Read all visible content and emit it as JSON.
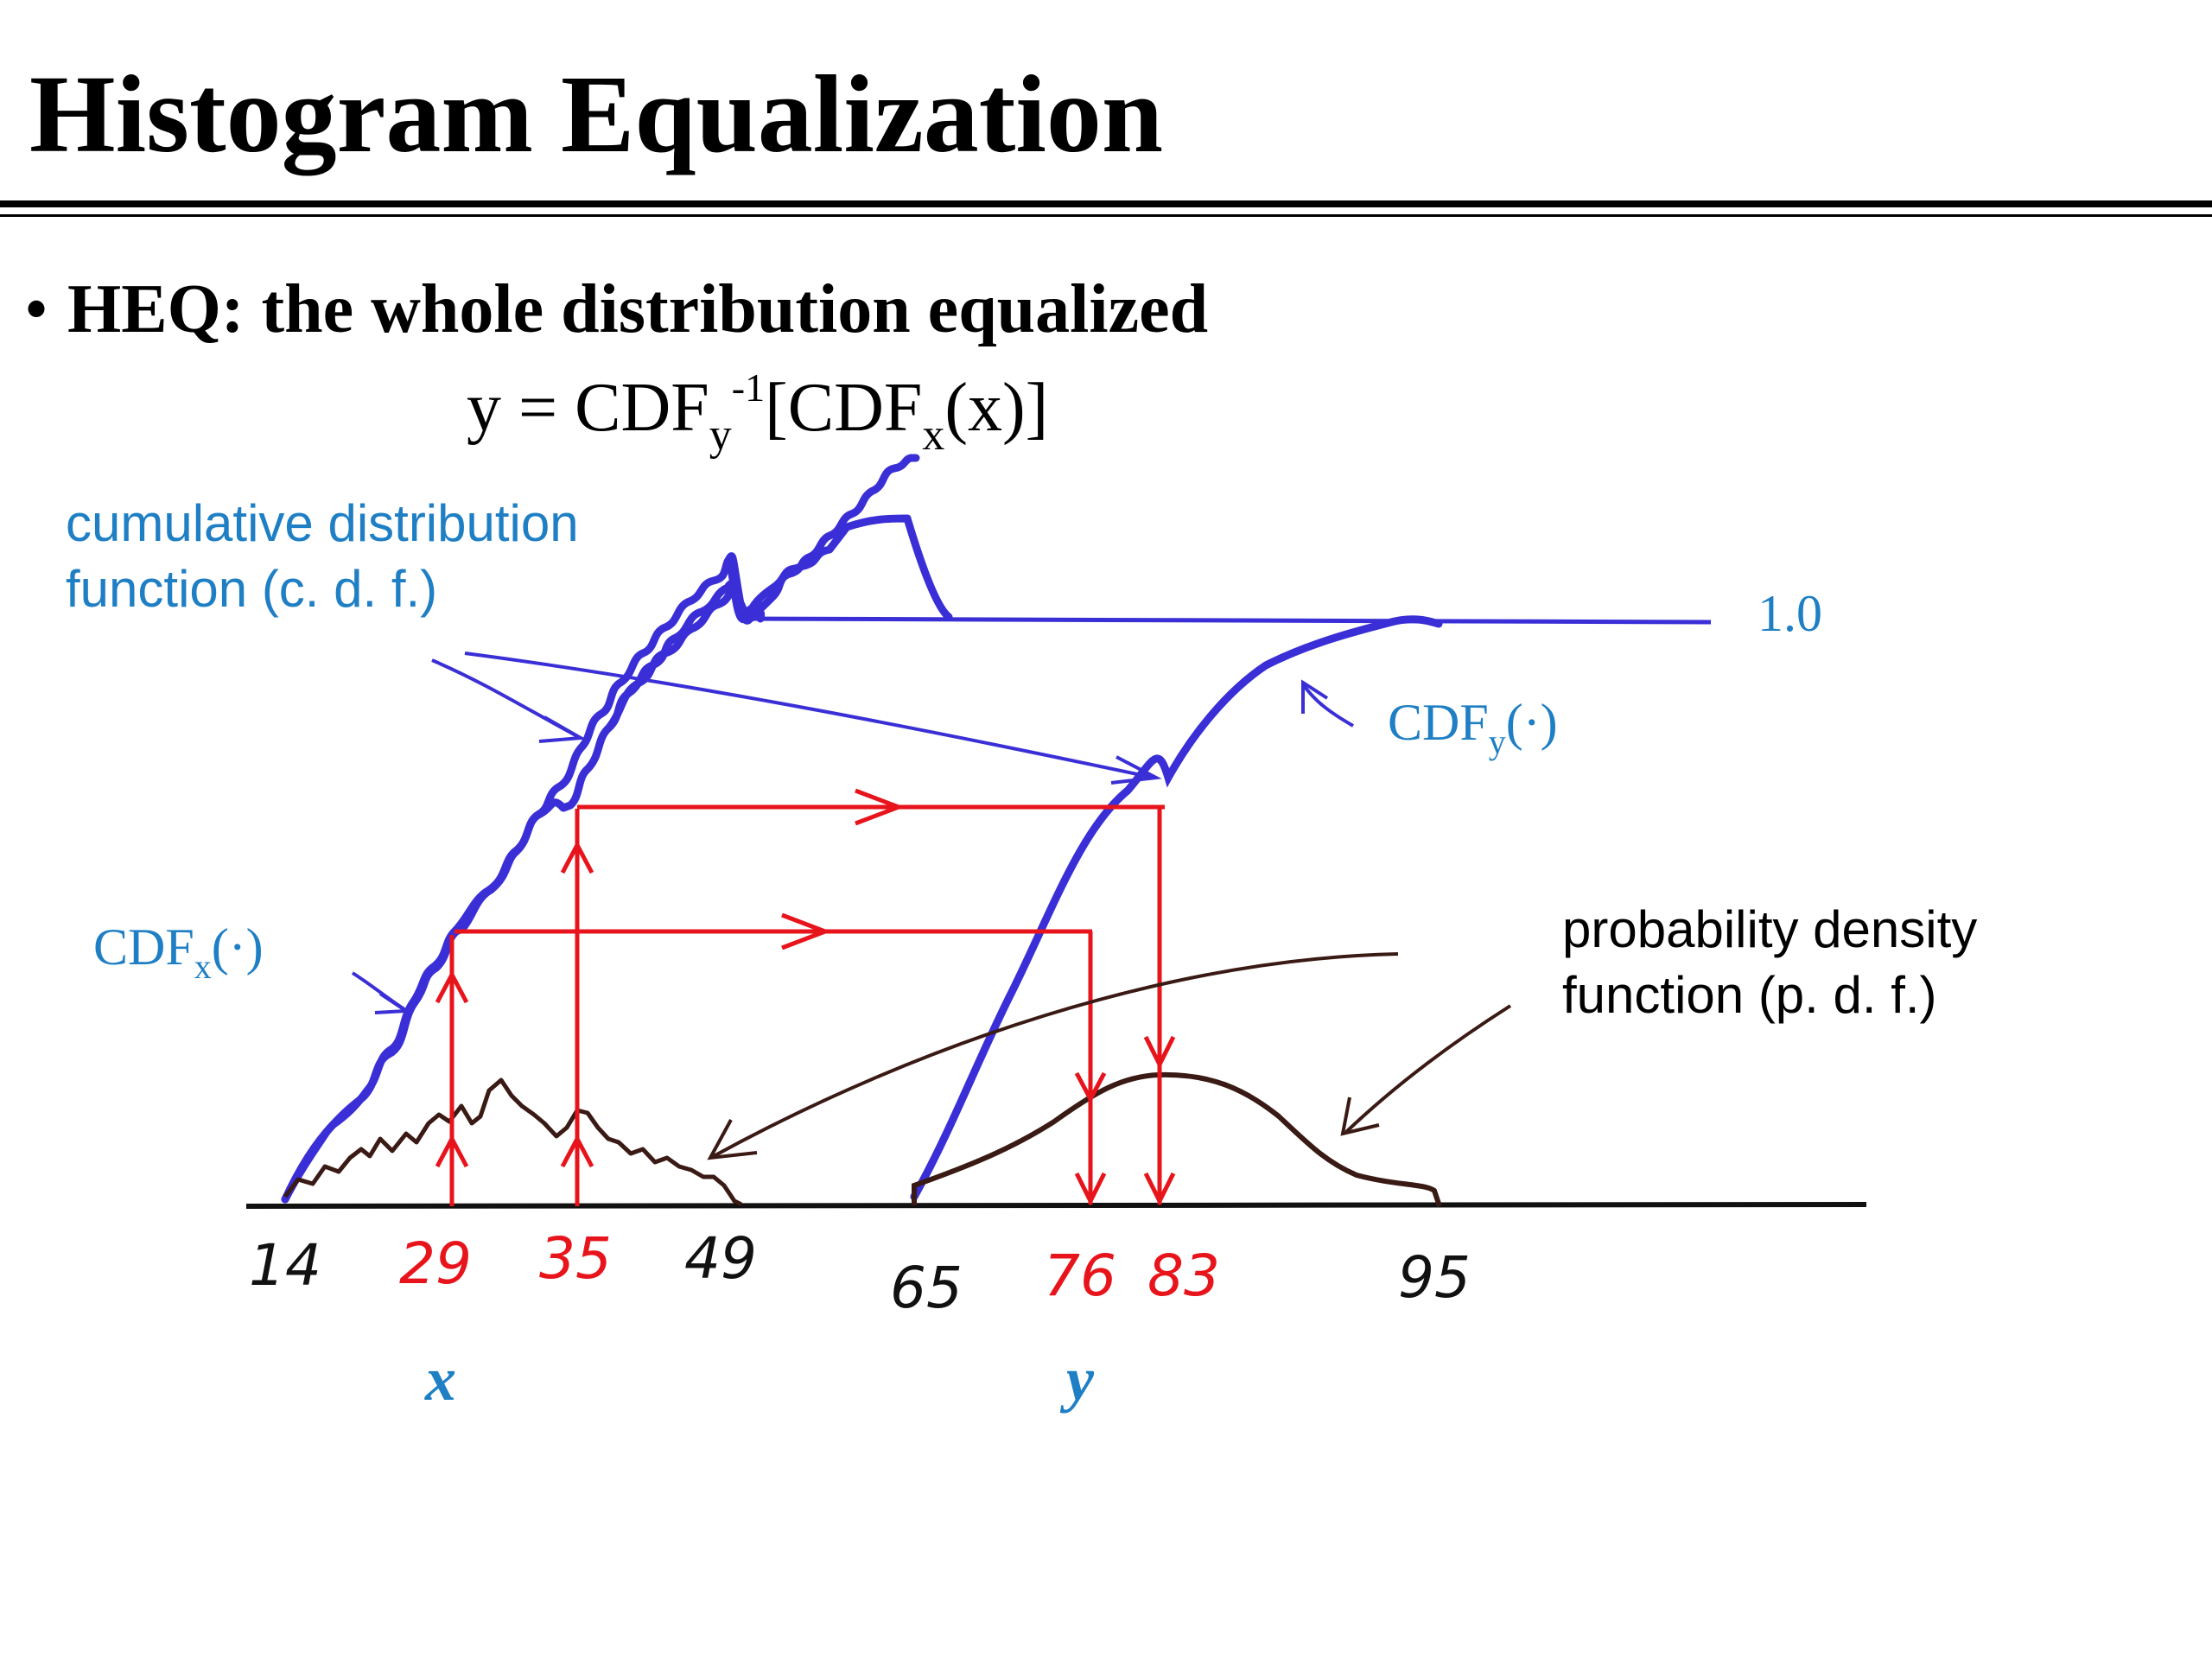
{
  "title": "Histogram Equalization",
  "bullet": {
    "marker": "•",
    "text": "HEQ: the whole distribution equalized"
  },
  "formula": {
    "lhs": "y = CDF",
    "sub1": "y",
    "sup1": "-1",
    "mid": "[CDF",
    "sub2": "x",
    "rhs": "(x)]"
  },
  "annotations": {
    "cdf_line1": "cumulative distribution",
    "cdf_line2": "function (c. d. f.)",
    "pdf_line1": "probability density",
    "pdf_line2": "function (p. d. f.)",
    "one": "1.0",
    "cdfy_main": "CDF",
    "cdfy_sub": "y",
    "cdfy_arg": "(·)",
    "cdfx_main": "CDF",
    "cdfx_sub": "x",
    "cdfx_arg": "(·)"
  },
  "axis_ticks": {
    "t14": "14",
    "t29": "29",
    "t35": "35",
    "t49": "49",
    "t65": "65",
    "t76": "76",
    "t83": "83",
    "t95": "95"
  },
  "variables": {
    "x": "x",
    "y": "y"
  },
  "colors": {
    "curve_blue": "#3a2fd6",
    "arrow_red": "#e8141b",
    "pdf_brown": "#3a1a14",
    "label_blue": "#1f7fc4",
    "text_black": "#000000"
  }
}
